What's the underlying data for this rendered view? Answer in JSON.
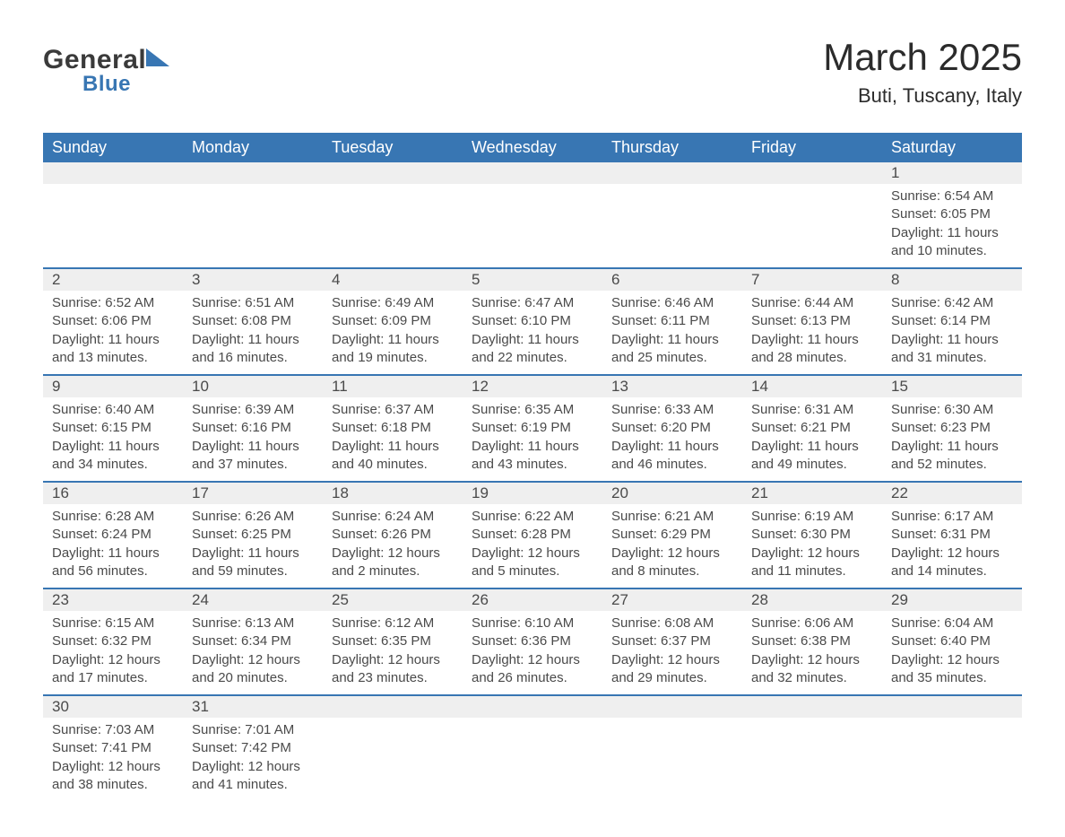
{
  "logo": {
    "general": "General",
    "blue": "Blue"
  },
  "title": "March 2025",
  "location": "Buti, Tuscany, Italy",
  "colors": {
    "header_bg": "#3876b3",
    "header_text": "#ffffff",
    "daynum_bg": "#efefef",
    "border": "#3876b3",
    "body_text": "#4a4a4a",
    "title_text": "#2b2b2b"
  },
  "weekdays": [
    "Sunday",
    "Monday",
    "Tuesday",
    "Wednesday",
    "Thursday",
    "Friday",
    "Saturday"
  ],
  "weeks": [
    [
      null,
      null,
      null,
      null,
      null,
      null,
      {
        "n": "1",
        "sunrise": "Sunrise: 6:54 AM",
        "sunset": "Sunset: 6:05 PM",
        "daylight": "Daylight: 11 hours and 10 minutes."
      }
    ],
    [
      {
        "n": "2",
        "sunrise": "Sunrise: 6:52 AM",
        "sunset": "Sunset: 6:06 PM",
        "daylight": "Daylight: 11 hours and 13 minutes."
      },
      {
        "n": "3",
        "sunrise": "Sunrise: 6:51 AM",
        "sunset": "Sunset: 6:08 PM",
        "daylight": "Daylight: 11 hours and 16 minutes."
      },
      {
        "n": "4",
        "sunrise": "Sunrise: 6:49 AM",
        "sunset": "Sunset: 6:09 PM",
        "daylight": "Daylight: 11 hours and 19 minutes."
      },
      {
        "n": "5",
        "sunrise": "Sunrise: 6:47 AM",
        "sunset": "Sunset: 6:10 PM",
        "daylight": "Daylight: 11 hours and 22 minutes."
      },
      {
        "n": "6",
        "sunrise": "Sunrise: 6:46 AM",
        "sunset": "Sunset: 6:11 PM",
        "daylight": "Daylight: 11 hours and 25 minutes."
      },
      {
        "n": "7",
        "sunrise": "Sunrise: 6:44 AM",
        "sunset": "Sunset: 6:13 PM",
        "daylight": "Daylight: 11 hours and 28 minutes."
      },
      {
        "n": "8",
        "sunrise": "Sunrise: 6:42 AM",
        "sunset": "Sunset: 6:14 PM",
        "daylight": "Daylight: 11 hours and 31 minutes."
      }
    ],
    [
      {
        "n": "9",
        "sunrise": "Sunrise: 6:40 AM",
        "sunset": "Sunset: 6:15 PM",
        "daylight": "Daylight: 11 hours and 34 minutes."
      },
      {
        "n": "10",
        "sunrise": "Sunrise: 6:39 AM",
        "sunset": "Sunset: 6:16 PM",
        "daylight": "Daylight: 11 hours and 37 minutes."
      },
      {
        "n": "11",
        "sunrise": "Sunrise: 6:37 AM",
        "sunset": "Sunset: 6:18 PM",
        "daylight": "Daylight: 11 hours and 40 minutes."
      },
      {
        "n": "12",
        "sunrise": "Sunrise: 6:35 AM",
        "sunset": "Sunset: 6:19 PM",
        "daylight": "Daylight: 11 hours and 43 minutes."
      },
      {
        "n": "13",
        "sunrise": "Sunrise: 6:33 AM",
        "sunset": "Sunset: 6:20 PM",
        "daylight": "Daylight: 11 hours and 46 minutes."
      },
      {
        "n": "14",
        "sunrise": "Sunrise: 6:31 AM",
        "sunset": "Sunset: 6:21 PM",
        "daylight": "Daylight: 11 hours and 49 minutes."
      },
      {
        "n": "15",
        "sunrise": "Sunrise: 6:30 AM",
        "sunset": "Sunset: 6:23 PM",
        "daylight": "Daylight: 11 hours and 52 minutes."
      }
    ],
    [
      {
        "n": "16",
        "sunrise": "Sunrise: 6:28 AM",
        "sunset": "Sunset: 6:24 PM",
        "daylight": "Daylight: 11 hours and 56 minutes."
      },
      {
        "n": "17",
        "sunrise": "Sunrise: 6:26 AM",
        "sunset": "Sunset: 6:25 PM",
        "daylight": "Daylight: 11 hours and 59 minutes."
      },
      {
        "n": "18",
        "sunrise": "Sunrise: 6:24 AM",
        "sunset": "Sunset: 6:26 PM",
        "daylight": "Daylight: 12 hours and 2 minutes."
      },
      {
        "n": "19",
        "sunrise": "Sunrise: 6:22 AM",
        "sunset": "Sunset: 6:28 PM",
        "daylight": "Daylight: 12 hours and 5 minutes."
      },
      {
        "n": "20",
        "sunrise": "Sunrise: 6:21 AM",
        "sunset": "Sunset: 6:29 PM",
        "daylight": "Daylight: 12 hours and 8 minutes."
      },
      {
        "n": "21",
        "sunrise": "Sunrise: 6:19 AM",
        "sunset": "Sunset: 6:30 PM",
        "daylight": "Daylight: 12 hours and 11 minutes."
      },
      {
        "n": "22",
        "sunrise": "Sunrise: 6:17 AM",
        "sunset": "Sunset: 6:31 PM",
        "daylight": "Daylight: 12 hours and 14 minutes."
      }
    ],
    [
      {
        "n": "23",
        "sunrise": "Sunrise: 6:15 AM",
        "sunset": "Sunset: 6:32 PM",
        "daylight": "Daylight: 12 hours and 17 minutes."
      },
      {
        "n": "24",
        "sunrise": "Sunrise: 6:13 AM",
        "sunset": "Sunset: 6:34 PM",
        "daylight": "Daylight: 12 hours and 20 minutes."
      },
      {
        "n": "25",
        "sunrise": "Sunrise: 6:12 AM",
        "sunset": "Sunset: 6:35 PM",
        "daylight": "Daylight: 12 hours and 23 minutes."
      },
      {
        "n": "26",
        "sunrise": "Sunrise: 6:10 AM",
        "sunset": "Sunset: 6:36 PM",
        "daylight": "Daylight: 12 hours and 26 minutes."
      },
      {
        "n": "27",
        "sunrise": "Sunrise: 6:08 AM",
        "sunset": "Sunset: 6:37 PM",
        "daylight": "Daylight: 12 hours and 29 minutes."
      },
      {
        "n": "28",
        "sunrise": "Sunrise: 6:06 AM",
        "sunset": "Sunset: 6:38 PM",
        "daylight": "Daylight: 12 hours and 32 minutes."
      },
      {
        "n": "29",
        "sunrise": "Sunrise: 6:04 AM",
        "sunset": "Sunset: 6:40 PM",
        "daylight": "Daylight: 12 hours and 35 minutes."
      }
    ],
    [
      {
        "n": "30",
        "sunrise": "Sunrise: 7:03 AM",
        "sunset": "Sunset: 7:41 PM",
        "daylight": "Daylight: 12 hours and 38 minutes."
      },
      {
        "n": "31",
        "sunrise": "Sunrise: 7:01 AM",
        "sunset": "Sunset: 7:42 PM",
        "daylight": "Daylight: 12 hours and 41 minutes."
      },
      null,
      null,
      null,
      null,
      null
    ]
  ]
}
